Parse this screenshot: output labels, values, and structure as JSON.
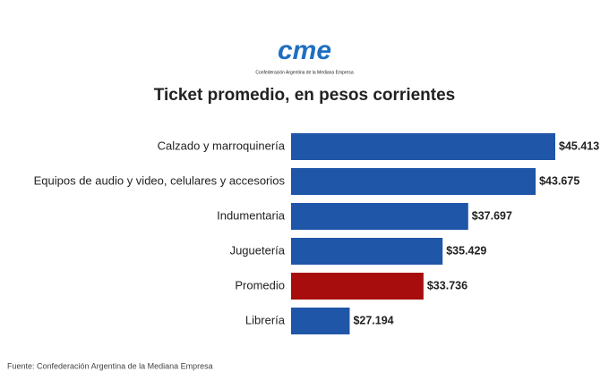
{
  "chart_data": {
    "type": "bar",
    "orientation": "horizontal",
    "logo_text": "cme",
    "logo_subtitle": "Confederación Argentina de la Mediana Empresa",
    "title": "Ticket promedio, en pesos corrientes",
    "categories": [
      "Calzado y marroquinería",
      "Equipos de audio y video, celulares y accesorios",
      "Indumentaria",
      "Juguetería",
      "Promedio",
      "Librería"
    ],
    "values": [
      45413,
      43675,
      37697,
      35429,
      33736,
      27194
    ],
    "value_labels": [
      "$45.413",
      "$43.675",
      "$37.697",
      "$35.429",
      "$33.736",
      "$27.194"
    ],
    "colors": [
      "#1f56a8",
      "#1f56a8",
      "#1f56a8",
      "#1f56a8",
      "#a80d0d",
      "#1f56a8"
    ],
    "xlim": [
      22000,
      47000
    ],
    "source": "Fuente: Confederación Argentina de la Mediana Empresa"
  }
}
